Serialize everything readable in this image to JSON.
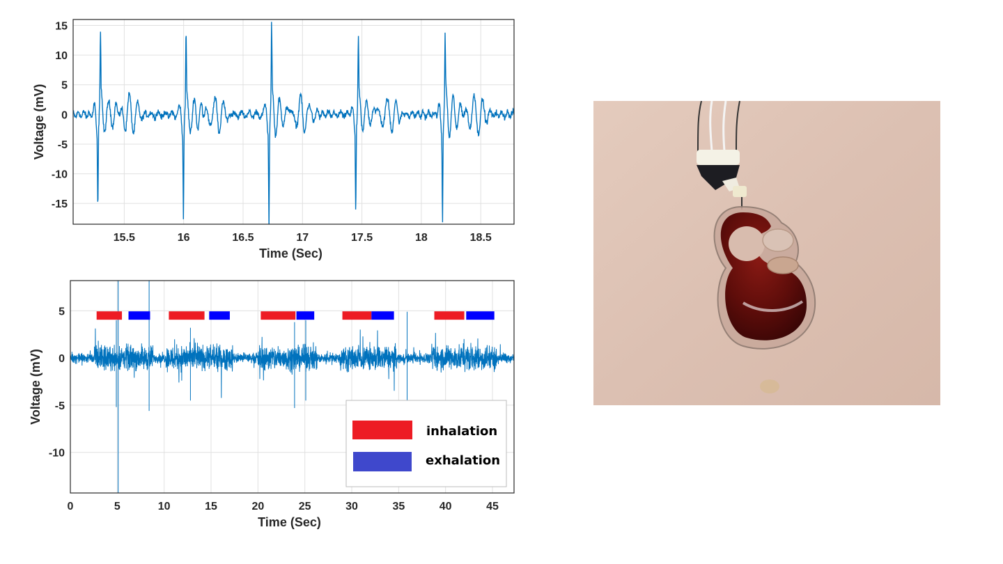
{
  "chart_data": [
    {
      "type": "line",
      "xlabel": "Time (Sec)",
      "ylabel": "Voltage (mV)",
      "xlim": [
        15.07,
        18.78
      ],
      "ylim": [
        -18.5,
        16
      ],
      "xticks": [
        15.5,
        16,
        16.5,
        17,
        17.5,
        18,
        18.5
      ],
      "xtick_labels": [
        "15.5",
        "16",
        "16.5",
        "17",
        "17.5",
        "18",
        "18.5"
      ],
      "yticks": [
        -15,
        -10,
        -5,
        0,
        5,
        10,
        15
      ],
      "ytick_labels": [
        "-15",
        "-10",
        "-5",
        "0",
        "5",
        "10",
        "15"
      ],
      "grid": true,
      "line_color": "#0072BD",
      "beats": [
        {
          "time": 15.29,
          "max": 11.1,
          "min": -12.7
        },
        {
          "time": 16.01,
          "max": 11.6,
          "min": -14.4
        },
        {
          "time": 16.73,
          "max": 12.3,
          "min": -15.8
        },
        {
          "time": 17.46,
          "max": 11.5,
          "min": -14.3
        },
        {
          "time": 18.19,
          "max": 10.5,
          "min": -14.5
        }
      ],
      "baseline_noise_amplitude": 1
    },
    {
      "type": "line",
      "xlabel": "Time (Sec)",
      "ylabel": "Voltage (mV)",
      "xlim": [
        0,
        47.3
      ],
      "ylim": [
        -14.3,
        8.2
      ],
      "xticks": [
        0,
        5,
        10,
        15,
        20,
        25,
        30,
        35,
        40,
        45
      ],
      "xtick_labels": [
        "0",
        "5",
        "10",
        "15",
        "20",
        "25",
        "30",
        "35",
        "40",
        "45"
      ],
      "yticks": [
        -10,
        -5,
        0,
        5
      ],
      "ytick_labels": [
        "-10",
        "-5",
        "0",
        "5"
      ],
      "grid": true,
      "line_color": "#0072BD",
      "spikes": [
        {
          "time": 5.1,
          "max": 8.2,
          "min": -14.3
        },
        {
          "time": 8.4,
          "max": 8.2,
          "min": -5.6
        },
        {
          "time": 4.9,
          "max": 4.0,
          "min": -5.2
        },
        {
          "time": 12.8,
          "max": 3.2,
          "min": -4.5
        },
        {
          "time": 23.9,
          "max": 3.8,
          "min": -5.3
        },
        {
          "time": 25.1,
          "max": 4.0,
          "min": -4.5
        },
        {
          "time": 35.9,
          "max": 4.9,
          "min": -5.0
        }
      ],
      "legend": {
        "placement": "bottom-right",
        "entries": [
          {
            "label": "inhalation",
            "color": "#ED1C24"
          },
          {
            "label": "exhalation",
            "color": "#3F48CC"
          }
        ]
      },
      "bar_level": 4.5,
      "inhalation": [
        [
          2.8,
          5.5
        ],
        [
          10.5,
          14.3
        ],
        [
          20.3,
          24.0
        ],
        [
          29.0,
          32.1
        ],
        [
          38.8,
          42.0
        ]
      ],
      "exhalation": [
        [
          6.2,
          8.5
        ],
        [
          14.8,
          17.0
        ],
        [
          24.1,
          26.0
        ],
        [
          32.1,
          34.5
        ],
        [
          42.2,
          45.2
        ]
      ]
    }
  ]
}
